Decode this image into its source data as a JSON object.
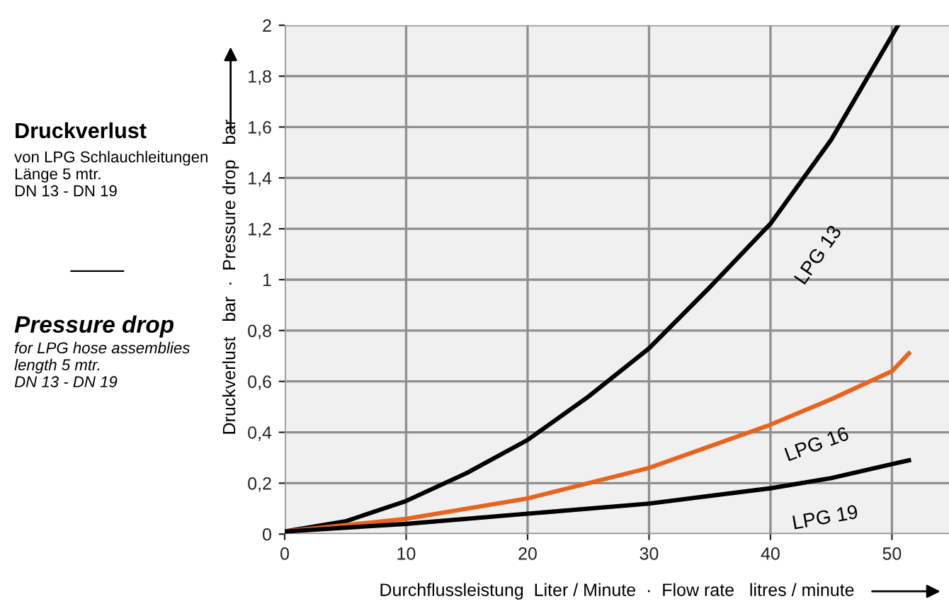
{
  "chart_data": {
    "type": "line",
    "title": "Druckverlust",
    "annotations": [
      "von LPG Schlauchleitungen\nLänge 5 mtr.\nDN 13 - DN 19",
      "Pressure drop",
      "for LPG hose assemblies\nlength 5 mtr.\nDN 13 - DN 19"
    ],
    "xlabel": "Durchflussleistung  Liter / Minute  ·  Flow rate   litres / minute",
    "ylabel": "Druckverlust   bar  ·  Pressure drop   bar",
    "series": [
      {
        "name": "LPG 13",
        "color": "#000000",
        "x": [
          0,
          5,
          10,
          15,
          20,
          25,
          30,
          35,
          40,
          45,
          50.5
        ],
        "values": [
          0.01,
          0.05,
          0.13,
          0.24,
          0.37,
          0.54,
          0.73,
          0.97,
          1.22,
          1.55,
          2.0
        ]
      },
      {
        "name": "LPG 16",
        "color": "#e8641e",
        "x": [
          0,
          10,
          20,
          30,
          40,
          45,
          50,
          51.4
        ],
        "values": [
          0.01,
          0.06,
          0.14,
          0.26,
          0.43,
          0.53,
          0.64,
          0.71
        ]
      },
      {
        "name": "LPG 19",
        "color": "#000000",
        "x": [
          0,
          10,
          20,
          30,
          40,
          45,
          51.4
        ],
        "values": [
          0.01,
          0.04,
          0.08,
          0.12,
          0.18,
          0.22,
          0.29
        ]
      }
    ],
    "xlim": [
      0,
      54.7
    ],
    "ylim": [
      0,
      2
    ],
    "xticks": [
      0,
      10,
      20,
      30,
      40,
      50
    ],
    "yticks": [
      0,
      {
        "value": 0.2,
        "label": "0,2"
      },
      {
        "value": 0.4,
        "label": "0,4"
      },
      {
        "value": 0.6,
        "label": "0,6"
      },
      {
        "value": 0.8,
        "label": "0,8"
      },
      1,
      {
        "value": 1.2,
        "label": "1,2"
      },
      {
        "value": 1.4,
        "label": "1,4"
      },
      {
        "value": 1.6,
        "label": "1,6"
      },
      {
        "value": 1.8,
        "label": "1,8"
      },
      2
    ],
    "grid": true,
    "legend": false,
    "marker": "none",
    "line_style": "solid"
  }
}
